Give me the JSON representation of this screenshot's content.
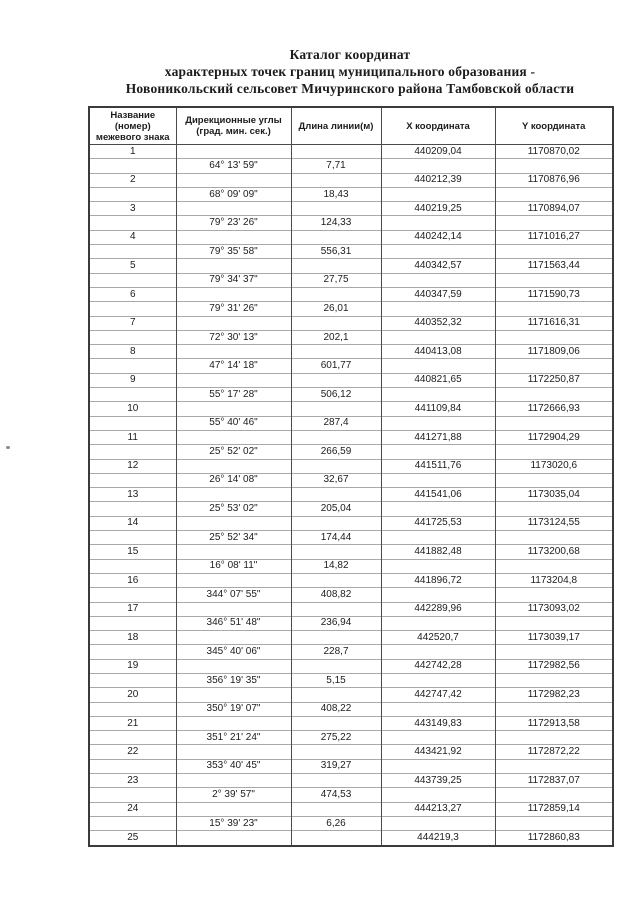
{
  "title": {
    "line1": "Каталог координат",
    "line2": "характерных точек границ муниципального образования -",
    "line3": "Новоникольский сельсовет Мичуринского района Тамбовской области"
  },
  "table": {
    "headers": {
      "name_lines": [
        "Название",
        "(номер)",
        "межевого знака"
      ],
      "angle_lines": [
        "Дирекционные углы",
        "(град. мин. сек.)"
      ],
      "length": "Длина линии(м)",
      "x": "X координата",
      "y": "Y координата"
    },
    "rows": [
      {
        "type": "point",
        "number": "1",
        "x": "440209,04",
        "y": "1170870,02"
      },
      {
        "type": "segment",
        "angle": "64° 13' 59\"",
        "length": "7,71"
      },
      {
        "type": "point",
        "number": "2",
        "x": "440212,39",
        "y": "1170876,96"
      },
      {
        "type": "segment",
        "angle": "68° 09' 09\"",
        "length": "18,43"
      },
      {
        "type": "point",
        "number": "3",
        "x": "440219,25",
        "y": "1170894,07"
      },
      {
        "type": "segment",
        "angle": "79° 23' 26\"",
        "length": "124,33"
      },
      {
        "type": "point",
        "number": "4",
        "x": "440242,14",
        "y": "1171016,27"
      },
      {
        "type": "segment",
        "angle": "79° 35' 58\"",
        "length": "556,31"
      },
      {
        "type": "point",
        "number": "5",
        "x": "440342,57",
        "y": "1171563,44"
      },
      {
        "type": "segment",
        "angle": "79° 34' 37\"",
        "length": "27,75"
      },
      {
        "type": "point",
        "number": "6",
        "x": "440347,59",
        "y": "1171590,73"
      },
      {
        "type": "segment",
        "angle": "79° 31' 26\"",
        "length": "26,01"
      },
      {
        "type": "point",
        "number": "7",
        "x": "440352,32",
        "y": "1171616,31"
      },
      {
        "type": "segment",
        "angle": "72° 30' 13\"",
        "length": "202,1"
      },
      {
        "type": "point",
        "number": "8",
        "x": "440413,08",
        "y": "1171809,06"
      },
      {
        "type": "segment",
        "angle": "47° 14' 18\"",
        "length": "601,77"
      },
      {
        "type": "point",
        "number": "9",
        "x": "440821,65",
        "y": "1172250,87"
      },
      {
        "type": "segment",
        "angle": "55° 17' 28\"",
        "length": "506,12"
      },
      {
        "type": "point",
        "number": "10",
        "x": "441109,84",
        "y": "1172666,93"
      },
      {
        "type": "segment",
        "angle": "55° 40' 46\"",
        "length": "287,4"
      },
      {
        "type": "point",
        "number": "11",
        "x": "441271,88",
        "y": "1172904,29"
      },
      {
        "type": "segment",
        "angle": "25° 52' 02\"",
        "length": "266,59"
      },
      {
        "type": "point",
        "number": "12",
        "x": "441511,76",
        "y": "1173020,6"
      },
      {
        "type": "segment",
        "angle": "26° 14' 08\"",
        "length": "32,67"
      },
      {
        "type": "point",
        "number": "13",
        "x": "441541,06",
        "y": "1173035,04"
      },
      {
        "type": "segment",
        "angle": "25° 53' 02\"",
        "length": "205,04"
      },
      {
        "type": "point",
        "number": "14",
        "x": "441725,53",
        "y": "1173124,55"
      },
      {
        "type": "segment",
        "angle": "25° 52' 34\"",
        "length": "174,44"
      },
      {
        "type": "point",
        "number": "15",
        "x": "441882,48",
        "y": "1173200,68"
      },
      {
        "type": "segment",
        "angle": "16° 08' 11\"",
        "length": "14,82"
      },
      {
        "type": "point",
        "number": "16",
        "x": "441896,72",
        "y": "1173204,8"
      },
      {
        "type": "segment",
        "angle": "344° 07' 55\"",
        "length": "408,82"
      },
      {
        "type": "point",
        "number": "17",
        "x": "442289,96",
        "y": "1173093,02"
      },
      {
        "type": "segment",
        "angle": "346° 51' 48\"",
        "length": "236,94"
      },
      {
        "type": "point",
        "number": "18",
        "x": "442520,7",
        "y": "1173039,17"
      },
      {
        "type": "segment",
        "angle": "345° 40' 06\"",
        "length": "228,7"
      },
      {
        "type": "point",
        "number": "19",
        "x": "442742,28",
        "y": "1172982,56"
      },
      {
        "type": "segment",
        "angle": "356° 19' 35\"",
        "length": "5,15"
      },
      {
        "type": "point",
        "number": "20",
        "x": "442747,42",
        "y": "1172982,23"
      },
      {
        "type": "segment",
        "angle": "350° 19' 07\"",
        "length": "408,22"
      },
      {
        "type": "point",
        "number": "21",
        "x": "443149,83",
        "y": "1172913,58"
      },
      {
        "type": "segment",
        "angle": "351° 21' 24\"",
        "length": "275,22"
      },
      {
        "type": "point",
        "number": "22",
        "x": "443421,92",
        "y": "1172872,22"
      },
      {
        "type": "segment",
        "angle": "353° 40' 45\"",
        "length": "319,27"
      },
      {
        "type": "point",
        "number": "23",
        "x": "443739,25",
        "y": "1172837,07"
      },
      {
        "type": "segment",
        "angle": "2° 39' 57\"",
        "length": "474,53"
      },
      {
        "type": "point",
        "number": "24",
        "x": "444213,27",
        "y": "1172859,14"
      },
      {
        "type": "segment",
        "angle": "15° 39' 23\"",
        "length": "6,26"
      },
      {
        "type": "point",
        "number": "25",
        "x": "444219,3",
        "y": "1172860,83"
      }
    ]
  }
}
